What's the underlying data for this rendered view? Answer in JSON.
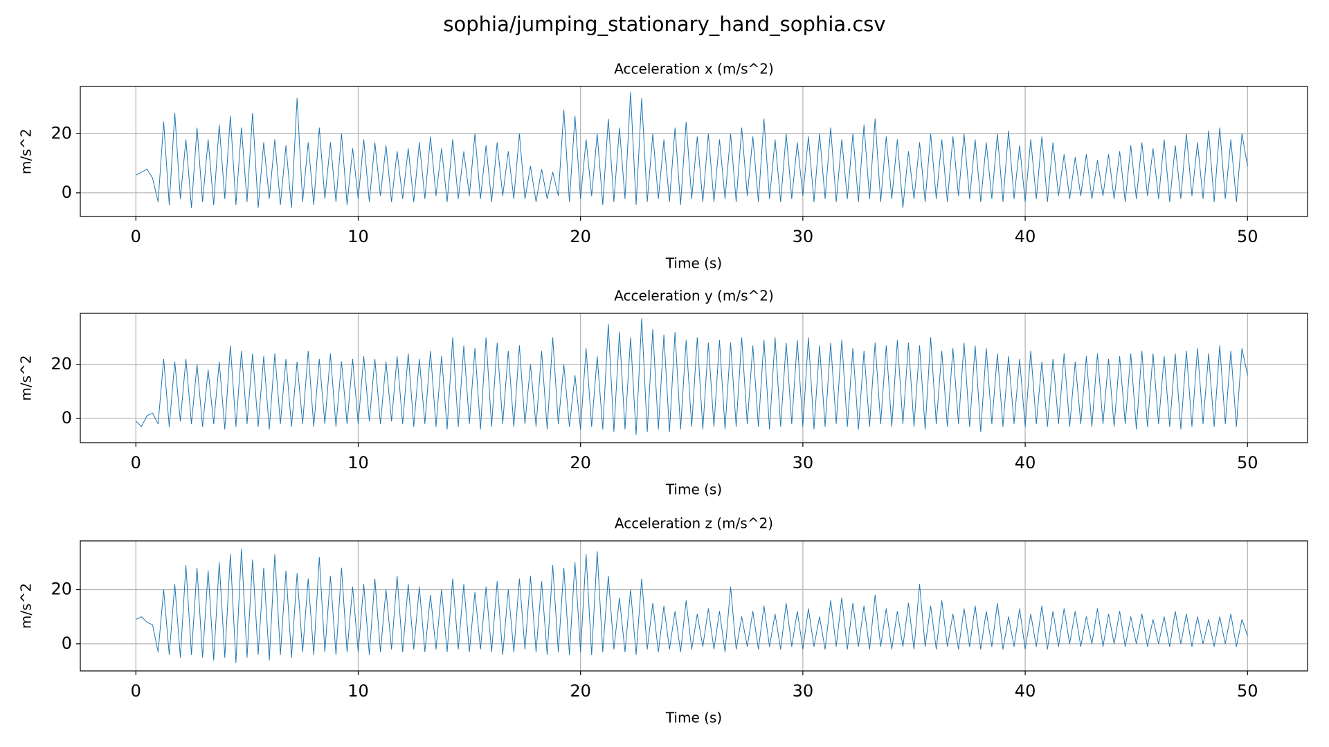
{
  "title": "sophia/jumping_stationary_hand_sophia.csv",
  "chart_data": [
    {
      "type": "line",
      "title": "Acceleration x (m/s^2)",
      "x_label": "Time (s)",
      "y_label": "m/s^2",
      "xlim": [
        -2.5,
        52.7
      ],
      "xticks": [
        0,
        10,
        20,
        30,
        40,
        50
      ],
      "ylim": [
        -8,
        36
      ],
      "yticks": [
        0,
        20
      ],
      "grid": true,
      "x": [
        0,
        0.25,
        0.5,
        0.75,
        1,
        1.25,
        1.5,
        1.75,
        2,
        2.25,
        2.5,
        2.75,
        3,
        3.25,
        3.5,
        3.75,
        4,
        4.25,
        4.5,
        4.75,
        5,
        5.25,
        5.5,
        5.75,
        6,
        6.25,
        6.5,
        6.75,
        7,
        7.25,
        7.5,
        7.75,
        8,
        8.25,
        8.5,
        8.75,
        9,
        9.25,
        9.5,
        9.75,
        10,
        10.25,
        10.5,
        10.75,
        11,
        11.25,
        11.5,
        11.75,
        12,
        12.25,
        12.5,
        12.75,
        13,
        13.25,
        13.5,
        13.75,
        14,
        14.25,
        14.5,
        14.75,
        15,
        15.25,
        15.5,
        15.75,
        16,
        16.25,
        16.5,
        16.75,
        17,
        17.25,
        17.5,
        17.75,
        18,
        18.25,
        18.5,
        18.75,
        19,
        19.25,
        19.5,
        19.75,
        20,
        20.25,
        20.5,
        20.75,
        21,
        21.25,
        21.5,
        21.75,
        22,
        22.25,
        22.5,
        22.75,
        23,
        23.25,
        23.5,
        23.75,
        24,
        24.25,
        24.5,
        24.75,
        25,
        25.25,
        25.5,
        25.75,
        26,
        26.25,
        26.5,
        26.75,
        27,
        27.25,
        27.5,
        27.75,
        28,
        28.25,
        28.5,
        28.75,
        29,
        29.25,
        29.5,
        29.75,
        30,
        30.25,
        30.5,
        30.75,
        31,
        31.25,
        31.5,
        31.75,
        32,
        32.25,
        32.5,
        32.75,
        33,
        33.25,
        33.5,
        33.75,
        34,
        34.25,
        34.5,
        34.75,
        35,
        35.25,
        35.5,
        35.75,
        36,
        36.25,
        36.5,
        36.75,
        37,
        37.25,
        37.5,
        37.75,
        38,
        38.25,
        38.5,
        38.75,
        39,
        39.25,
        39.5,
        39.75,
        40,
        40.25,
        40.5,
        40.75,
        41,
        41.25,
        41.5,
        41.75,
        42,
        42.25,
        42.5,
        42.75,
        43,
        43.25,
        43.5,
        43.75,
        44,
        44.25,
        44.5,
        44.75,
        45,
        45.25,
        45.5,
        45.75,
        46,
        46.25,
        46.5,
        46.75,
        47,
        47.25,
        47.5,
        47.75,
        48,
        48.25,
        48.5,
        48.75,
        49,
        49.25,
        49.5,
        49.75,
        50
      ],
      "series": [
        {
          "color": "#1f77b4",
          "values": [
            6,
            7,
            8,
            5,
            -3,
            24,
            -4,
            27,
            -2,
            18,
            -5,
            22,
            -3,
            18,
            -4,
            23,
            -2,
            26,
            -4,
            22,
            -3,
            27,
            -5,
            17,
            -2,
            18,
            -4,
            16,
            -5,
            32,
            -3,
            17,
            -4,
            22,
            -2,
            17,
            -3,
            20,
            -4,
            15,
            -2,
            18,
            -3,
            17,
            -1,
            16,
            -3,
            14,
            -2,
            15,
            -3,
            17,
            -2,
            19,
            -1,
            15,
            -3,
            18,
            -2,
            14,
            -1,
            20,
            -2,
            16,
            -3,
            17,
            -1,
            14,
            -2,
            20,
            -2,
            9,
            -3,
            8,
            -2,
            7,
            -1,
            28,
            -3,
            26,
            -2,
            18,
            -1,
            20,
            -4,
            25,
            -3,
            22,
            -2,
            34,
            -4,
            32,
            -3,
            20,
            -2,
            18,
            -3,
            22,
            -4,
            24,
            -2,
            19,
            -3,
            20,
            -3,
            18,
            -2,
            20,
            -3,
            22,
            -1,
            19,
            -3,
            25,
            -2,
            18,
            -3,
            20,
            -2,
            17,
            -1,
            19,
            -3,
            20,
            -2,
            22,
            -3,
            18,
            -2,
            20,
            -3,
            23,
            -2,
            25,
            -3,
            19,
            -2,
            18,
            -5,
            14,
            -2,
            17,
            -3,
            20,
            -2,
            18,
            -3,
            19,
            -1,
            20,
            -2,
            18,
            -3,
            17,
            -2,
            20,
            -3,
            21,
            -2,
            16,
            -3,
            18,
            -2,
            19,
            -3,
            17,
            -1,
            13,
            -2,
            12,
            -1,
            13,
            -2,
            11,
            -1,
            13,
            -2,
            14,
            -3,
            16,
            -2,
            17,
            -1,
            15,
            -2,
            18,
            -3,
            16,
            -2,
            20,
            -1,
            17,
            -2,
            21,
            -3,
            22,
            -2,
            18,
            -3,
            20,
            9
          ]
        }
      ]
    },
    {
      "type": "line",
      "title": "Acceleration y (m/s^2)",
      "x_label": "Time (s)",
      "y_label": "m/s^2",
      "xlim": [
        -2.5,
        52.7
      ],
      "xticks": [
        0,
        10,
        20,
        30,
        40,
        50
      ],
      "ylim": [
        -9,
        39
      ],
      "yticks": [
        0,
        20
      ],
      "grid": true,
      "x": [
        0,
        0.25,
        0.5,
        0.75,
        1,
        1.25,
        1.5,
        1.75,
        2,
        2.25,
        2.5,
        2.75,
        3,
        3.25,
        3.5,
        3.75,
        4,
        4.25,
        4.5,
        4.75,
        5,
        5.25,
        5.5,
        5.75,
        6,
        6.25,
        6.5,
        6.75,
        7,
        7.25,
        7.5,
        7.75,
        8,
        8.25,
        8.5,
        8.75,
        9,
        9.25,
        9.5,
        9.75,
        10,
        10.25,
        10.5,
        10.75,
        11,
        11.25,
        11.5,
        11.75,
        12,
        12.25,
        12.5,
        12.75,
        13,
        13.25,
        13.5,
        13.75,
        14,
        14.25,
        14.5,
        14.75,
        15,
        15.25,
        15.5,
        15.75,
        16,
        16.25,
        16.5,
        16.75,
        17,
        17.25,
        17.5,
        17.75,
        18,
        18.25,
        18.5,
        18.75,
        19,
        19.25,
        19.5,
        19.75,
        20,
        20.25,
        20.5,
        20.75,
        21,
        21.25,
        21.5,
        21.75,
        22,
        22.25,
        22.5,
        22.75,
        23,
        23.25,
        23.5,
        23.75,
        24,
        24.25,
        24.5,
        24.75,
        25,
        25.25,
        25.5,
        25.75,
        26,
        26.25,
        26.5,
        26.75,
        27,
        27.25,
        27.5,
        27.75,
        28,
        28.25,
        28.5,
        28.75,
        29,
        29.25,
        29.5,
        29.75,
        30,
        30.25,
        30.5,
        30.75,
        31,
        31.25,
        31.5,
        31.75,
        32,
        32.25,
        32.5,
        32.75,
        33,
        33.25,
        33.5,
        33.75,
        34,
        34.25,
        34.5,
        34.75,
        35,
        35.25,
        35.5,
        35.75,
        36,
        36.25,
        36.5,
        36.75,
        37,
        37.25,
        37.5,
        37.75,
        38,
        38.25,
        38.5,
        38.75,
        39,
        39.25,
        39.5,
        39.75,
        40,
        40.25,
        40.5,
        40.75,
        41,
        41.25,
        41.5,
        41.75,
        42,
        42.25,
        42.5,
        42.75,
        43,
        43.25,
        43.5,
        43.75,
        44,
        44.25,
        44.5,
        44.75,
        45,
        45.25,
        45.5,
        45.75,
        46,
        46.25,
        46.5,
        46.75,
        47,
        47.25,
        47.5,
        47.75,
        48,
        48.25,
        48.5,
        48.75,
        49,
        49.25,
        49.5,
        49.75,
        50
      ],
      "series": [
        {
          "color": "#1f77b4",
          "values": [
            -1,
            -3,
            1,
            2,
            -2,
            22,
            -3,
            21,
            -1,
            22,
            -2,
            20,
            -3,
            18,
            -2,
            21,
            -4,
            27,
            -3,
            25,
            -2,
            24,
            -3,
            23,
            -4,
            24,
            -2,
            22,
            -3,
            21,
            -2,
            25,
            -3,
            22,
            -2,
            24,
            -3,
            21,
            -2,
            22,
            -2,
            23,
            -1,
            22,
            -2,
            21,
            -1,
            23,
            -2,
            24,
            -3,
            22,
            -2,
            25,
            -3,
            23,
            -4,
            30,
            -3,
            27,
            -2,
            26,
            -4,
            30,
            -3,
            28,
            -2,
            25,
            -3,
            27,
            -2,
            20,
            -3,
            25,
            -4,
            30,
            -2,
            20,
            -3,
            16,
            -4,
            26,
            -3,
            23,
            -4,
            35,
            -5,
            32,
            -4,
            30,
            -6,
            37,
            -5,
            33,
            -4,
            31,
            -5,
            32,
            -4,
            29,
            -3,
            30,
            -4,
            28,
            -3,
            29,
            -4,
            28,
            -3,
            30,
            -2,
            27,
            -3,
            29,
            -4,
            30,
            -3,
            28,
            -2,
            29,
            -3,
            30,
            -4,
            27,
            -3,
            28,
            -2,
            29,
            -3,
            26,
            -4,
            25,
            -3,
            28,
            -2,
            27,
            -3,
            29,
            -2,
            28,
            -3,
            27,
            -4,
            30,
            -2,
            25,
            -3,
            26,
            -2,
            28,
            -3,
            27,
            -5,
            26,
            -2,
            24,
            -3,
            23,
            -2,
            22,
            -3,
            25,
            -2,
            21,
            -3,
            22,
            -2,
            24,
            -3,
            21,
            -2,
            23,
            -3,
            24,
            -2,
            22,
            -3,
            23,
            -2,
            24,
            -4,
            25,
            -3,
            24,
            -2,
            23,
            -3,
            24,
            -4,
            25,
            -3,
            26,
            -2,
            24,
            -3,
            27,
            -2,
            25,
            -3,
            26,
            16
          ]
        }
      ]
    },
    {
      "type": "line",
      "title": "Acceleration z (m/s^2)",
      "x_label": "Time (s)",
      "y_label": "m/s^2",
      "xlim": [
        -2.5,
        52.7
      ],
      "xticks": [
        0,
        10,
        20,
        30,
        40,
        50
      ],
      "ylim": [
        -10,
        38
      ],
      "yticks": [
        0,
        20
      ],
      "grid": true,
      "x": [
        0,
        0.25,
        0.5,
        0.75,
        1,
        1.25,
        1.5,
        1.75,
        2,
        2.25,
        2.5,
        2.75,
        3,
        3.25,
        3.5,
        3.75,
        4,
        4.25,
        4.5,
        4.75,
        5,
        5.25,
        5.5,
        5.75,
        6,
        6.25,
        6.5,
        6.75,
        7,
        7.25,
        7.5,
        7.75,
        8,
        8.25,
        8.5,
        8.75,
        9,
        9.25,
        9.5,
        9.75,
        10,
        10.25,
        10.5,
        10.75,
        11,
        11.25,
        11.5,
        11.75,
        12,
        12.25,
        12.5,
        12.75,
        13,
        13.25,
        13.5,
        13.75,
        14,
        14.25,
        14.5,
        14.75,
        15,
        15.25,
        15.5,
        15.75,
        16,
        16.25,
        16.5,
        16.75,
        17,
        17.25,
        17.5,
        17.75,
        18,
        18.25,
        18.5,
        18.75,
        19,
        19.25,
        19.5,
        19.75,
        20,
        20.25,
        20.5,
        20.75,
        21,
        21.25,
        21.5,
        21.75,
        22,
        22.25,
        22.5,
        22.75,
        23,
        23.25,
        23.5,
        23.75,
        24,
        24.25,
        24.5,
        24.75,
        25,
        25.25,
        25.5,
        25.75,
        26,
        26.25,
        26.5,
        26.75,
        27,
        27.25,
        27.5,
        27.75,
        28,
        28.25,
        28.5,
        28.75,
        29,
        29.25,
        29.5,
        29.75,
        30,
        30.25,
        30.5,
        30.75,
        31,
        31.25,
        31.5,
        31.75,
        32,
        32.25,
        32.5,
        32.75,
        33,
        33.25,
        33.5,
        33.75,
        34,
        34.25,
        34.5,
        34.75,
        35,
        35.25,
        35.5,
        35.75,
        36,
        36.25,
        36.5,
        36.75,
        37,
        37.25,
        37.5,
        37.75,
        38,
        38.25,
        38.5,
        38.75,
        39,
        39.25,
        39.5,
        39.75,
        40,
        40.25,
        40.5,
        40.75,
        41,
        41.25,
        41.5,
        41.75,
        42,
        42.25,
        42.5,
        42.75,
        43,
        43.25,
        43.5,
        43.75,
        44,
        44.25,
        44.5,
        44.75,
        45,
        45.25,
        45.5,
        45.75,
        46,
        46.25,
        46.5,
        46.75,
        47,
        47.25,
        47.5,
        47.75,
        48,
        48.25,
        48.5,
        48.75,
        49,
        49.25,
        49.5,
        49.75,
        50
      ],
      "series": [
        {
          "color": "#1f77b4",
          "values": [
            9,
            10,
            8,
            7,
            -3,
            20,
            -4,
            22,
            -5,
            29,
            -4,
            28,
            -5,
            27,
            -6,
            30,
            -5,
            33,
            -7,
            35,
            -5,
            31,
            -4,
            28,
            -6,
            33,
            -4,
            27,
            -5,
            26,
            -3,
            24,
            -4,
            32,
            -3,
            25,
            -4,
            28,
            -3,
            21,
            -3,
            22,
            -4,
            24,
            -3,
            20,
            -2,
            25,
            -3,
            22,
            -2,
            21,
            -3,
            18,
            -2,
            20,
            -3,
            24,
            -2,
            22,
            -3,
            19,
            -2,
            21,
            -3,
            23,
            -4,
            20,
            -3,
            24,
            -2,
            25,
            -3,
            23,
            -4,
            29,
            -3,
            28,
            -4,
            30,
            -3,
            33,
            -4,
            34,
            -3,
            25,
            -2,
            17,
            -3,
            20,
            -4,
            24,
            -2,
            15,
            -3,
            14,
            -2,
            12,
            -3,
            16,
            -2,
            11,
            -1,
            13,
            -2,
            12,
            -3,
            21,
            -2,
            10,
            -1,
            12,
            -2,
            14,
            -1,
            11,
            -2,
            15,
            -1,
            12,
            -2,
            13,
            -1,
            10,
            -2,
            16,
            -1,
            17,
            -2,
            15,
            -1,
            14,
            -2,
            18,
            -1,
            13,
            -2,
            12,
            -1,
            15,
            -2,
            22,
            -1,
            14,
            -2,
            16,
            -1,
            11,
            -2,
            13,
            -1,
            14,
            -2,
            12,
            -1,
            15,
            -2,
            10,
            -1,
            13,
            -2,
            11,
            -1,
            14,
            -2,
            12,
            -1,
            13,
            0,
            12,
            -1,
            10,
            0,
            13,
            -1,
            11,
            0,
            12,
            -1,
            10,
            0,
            11,
            -1,
            9,
            0,
            10,
            -1,
            12,
            0,
            11,
            -1,
            10,
            0,
            9,
            -1,
            10,
            0,
            11,
            -1,
            9,
            3
          ]
        }
      ]
    }
  ]
}
